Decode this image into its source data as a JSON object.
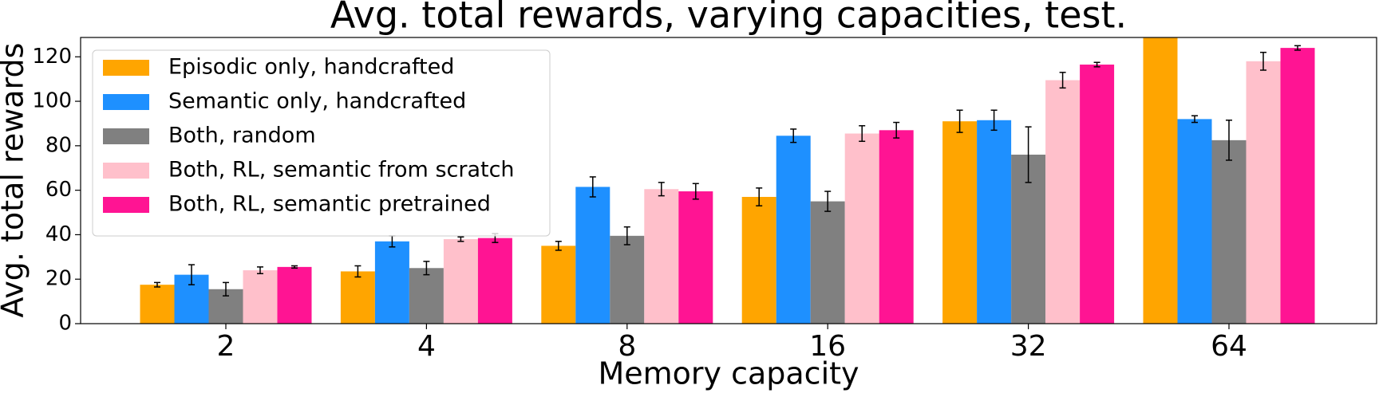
{
  "chart_data": {
    "type": "bar",
    "title": "Avg. total rewards, varying capacities, test.",
    "x_label": "Memory capacity",
    "y_label": "Avg. total rewards",
    "categories": [
      "2",
      "4",
      "8",
      "16",
      "32",
      "64"
    ],
    "series": [
      {
        "name": "Episodic only, handcrafted",
        "color": "#ffa500",
        "values": [
          17.5,
          23.5,
          35,
          57,
          91,
          130
        ],
        "errors": [
          1,
          2.5,
          2,
          4,
          5,
          null
        ]
      },
      {
        "name": "Semantic only, handcrafted",
        "color": "#1e90ff",
        "values": [
          22,
          37,
          61.5,
          84.5,
          91.5,
          92
        ],
        "errors": [
          4.5,
          2.5,
          4.5,
          3,
          4.5,
          1.5
        ]
      },
      {
        "name": "Both, random",
        "color": "#808080",
        "values": [
          15.5,
          25,
          39.5,
          55,
          76,
          82.5
        ],
        "errors": [
          3,
          3,
          4,
          4.5,
          12.5,
          9
        ]
      },
      {
        "name": "Both, RL, semantic from scratch",
        "color": "#ffc0cb",
        "values": [
          24,
          38,
          60.5,
          85.5,
          109.5,
          118
        ],
        "errors": [
          1.5,
          1,
          3,
          3.5,
          3.5,
          4
        ]
      },
      {
        "name": "Both, RL, semantic pretrained",
        "color": "#ff1493",
        "values": [
          25.5,
          38.5,
          59.5,
          87,
          116.5,
          124
        ],
        "errors": [
          0.5,
          2,
          3.5,
          3.5,
          1,
          1
        ]
      }
    ],
    "ylim": [
      0,
      128.7
    ],
    "yticks": [
      0,
      20,
      40,
      60,
      80,
      100,
      120
    ],
    "legend": "upper-left"
  }
}
